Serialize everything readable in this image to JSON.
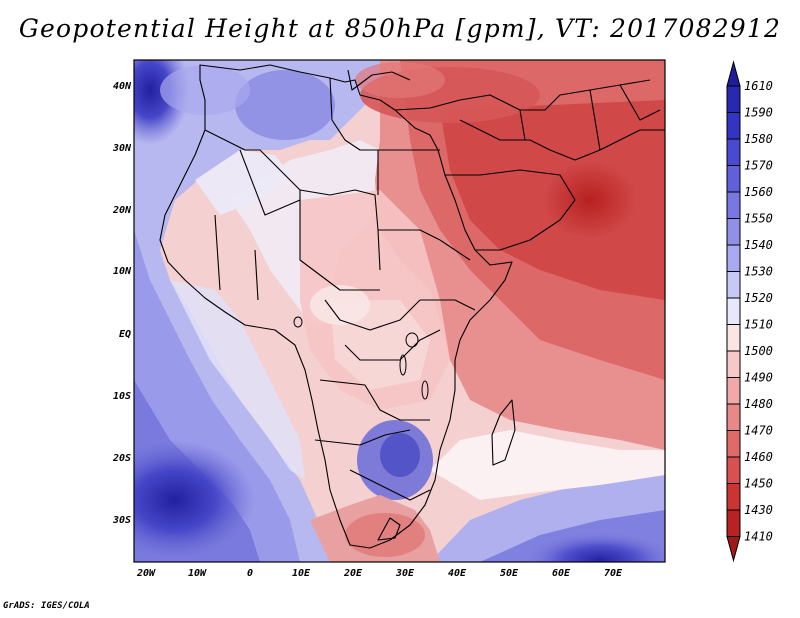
{
  "title": "Geopotential Height at 850hPa [gpm], VT: 2017082912",
  "credit": "GrADS: IGES/COLA",
  "map": {
    "lat_labels": [
      "40N",
      "30N",
      "20N",
      "10N",
      "EQ",
      "10S",
      "20S",
      "30S"
    ],
    "lon_labels": [
      "20W",
      "10W",
      "0",
      "10E",
      "20E",
      "30E",
      "40E",
      "50E",
      "60E",
      "70E"
    ]
  },
  "colorbar": {
    "labels": [
      "1610",
      "1590",
      "1580",
      "1570",
      "1560",
      "1550",
      "1540",
      "1530",
      "1520",
      "1510",
      "1500",
      "1490",
      "1480",
      "1470",
      "1460",
      "1450",
      "1430",
      "1410"
    ],
    "colors": [
      "#1e1e9c",
      "#2828b0",
      "#3434c4",
      "#4a4ad0",
      "#6060da",
      "#7878e2",
      "#9090e8",
      "#aaaaf0",
      "#c8c8f6",
      "#e8e8fc",
      "#fbe4e4",
      "#f6c8c8",
      "#f0a8a8",
      "#e88888",
      "#e06a6a",
      "#d85050",
      "#cc3434",
      "#b82222",
      "#a01818"
    ]
  }
}
